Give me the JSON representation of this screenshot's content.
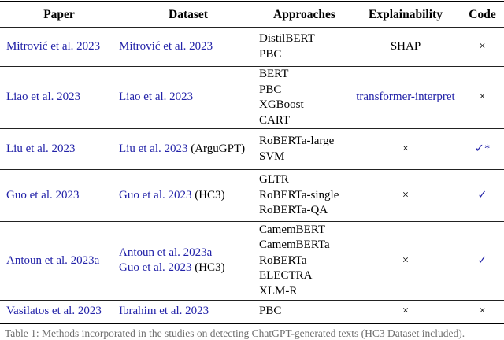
{
  "colors": {
    "link_blue": "#2222a8",
    "rule": "#000000"
  },
  "table": {
    "headers": [
      "Paper",
      "Dataset",
      "Approaches",
      "Explainability",
      "Code"
    ],
    "rows": [
      {
        "paper": [
          {
            "text": "Mitrović et al. 2023",
            "blue": true
          }
        ],
        "dataset": [
          [
            {
              "text": "Mitrović et al. 2023",
              "blue": true
            }
          ]
        ],
        "approaches": [
          "DistilBERT",
          "PBC"
        ],
        "explainability": {
          "text": "SHAP",
          "blue": false
        },
        "code": {
          "text": "×",
          "blue": false
        }
      },
      {
        "paper": [
          {
            "text": "Liao et al. 2023",
            "blue": true
          }
        ],
        "dataset": [
          [
            {
              "text": "Liao et al. 2023",
              "blue": true
            }
          ]
        ],
        "approaches": [
          "BERT",
          "PBC",
          "XGBoost",
          "CART"
        ],
        "explainability": {
          "text": "transformer-interpret",
          "blue": true
        },
        "code": {
          "text": "×",
          "blue": false
        }
      },
      {
        "paper": [
          {
            "text": "Liu et al. 2023",
            "blue": true
          }
        ],
        "dataset": [
          [
            {
              "text": "Liu et al. 2023",
              "blue": true
            },
            {
              "text": " (ArguGPT)",
              "blue": false
            }
          ]
        ],
        "approaches": [
          "RoBERTa-large",
          "SVM"
        ],
        "explainability": {
          "text": "×",
          "blue": false
        },
        "code": {
          "text": "✓*",
          "blue": true
        }
      },
      {
        "paper": [
          {
            "text": "Guo et al. 2023",
            "blue": true
          }
        ],
        "dataset": [
          [
            {
              "text": "Guo et al. 2023",
              "blue": true
            },
            {
              "text": " (HC3)",
              "blue": false
            }
          ]
        ],
        "approaches": [
          "GLTR",
          "RoBERTa-single",
          "RoBERTa-QA"
        ],
        "explainability": {
          "text": "×",
          "blue": false
        },
        "code": {
          "text": "✓",
          "blue": true
        }
      },
      {
        "paper": [
          {
            "text": "Antoun et al. 2023a",
            "blue": true
          }
        ],
        "dataset": [
          [
            {
              "text": "Antoun et al. 2023a",
              "blue": true
            }
          ],
          [
            {
              "text": "Guo et al. 2023",
              "blue": true
            },
            {
              "text": " (HC3)",
              "blue": false
            }
          ]
        ],
        "approaches": [
          "CamemBERT",
          "CamemBERTa",
          "RoBERTa",
          "ELECTRA",
          "XLM-R"
        ],
        "explainability": {
          "text": "×",
          "blue": false
        },
        "code": {
          "text": "✓",
          "blue": true
        }
      },
      {
        "paper": [
          {
            "text": "Vasilatos et al. 2023",
            "blue": true
          }
        ],
        "dataset": [
          [
            {
              "text": "Ibrahim et al. 2023",
              "blue": true
            }
          ]
        ],
        "approaches": [
          "PBC"
        ],
        "explainability": {
          "text": "×",
          "blue": false
        },
        "code": {
          "text": "×",
          "blue": false
        }
      }
    ]
  },
  "caption": "Table 1: Methods incorporated in the studies on detecting ChatGPT-generated texts (HC3 Dataset included)."
}
